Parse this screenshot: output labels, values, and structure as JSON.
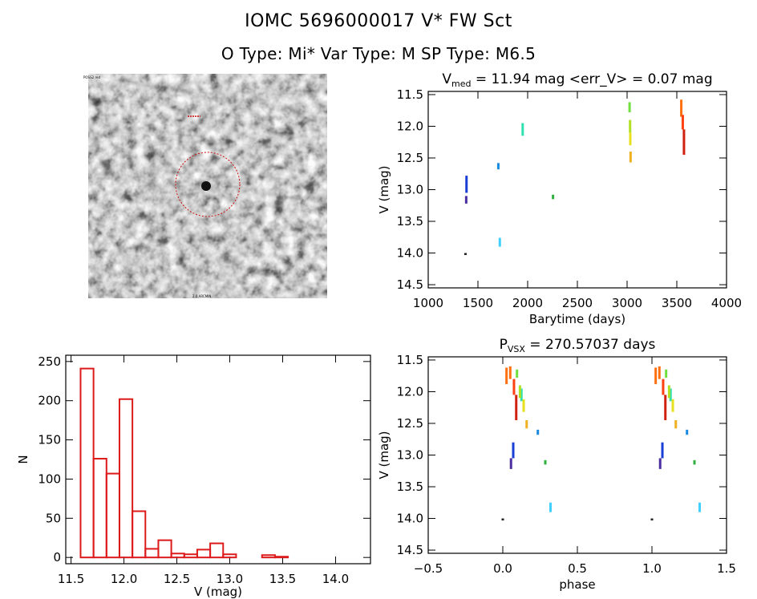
{
  "header": {
    "line1": "IOMC 5696000017    V* FW Sct",
    "line2": "O Type: Mi*  Var Type: M   SP Type: M6.5"
  },
  "finder": {
    "description_icon": "sky-finder-image",
    "circle_color": "#d01010"
  },
  "chart_data": [
    {
      "type": "scatter",
      "id": "light-curve",
      "title_prefix": "V",
      "title_sub": "med",
      "title_rest": " = 11.94 mag <err_V> = 0.07 mag",
      "xlabel": "Barytime (days)",
      "ylabel": "V (mag)",
      "xlim": [
        1000,
        4000
      ],
      "ylim": [
        14.55,
        11.45
      ],
      "xticks": [
        1000,
        1500,
        2000,
        2500,
        3000,
        3500,
        4000
      ],
      "yticks": [
        11.5,
        12.0,
        12.5,
        13.0,
        13.5,
        14.0,
        14.5
      ],
      "ytick_labels": [
        "11.5",
        "12.0",
        "12.5",
        "13.0",
        "13.5",
        "14.0",
        "14.5"
      ],
      "groups": [
        {
          "x": 1375,
          "y": [
            14.0,
            14.03
          ],
          "color": "#222222"
        },
        {
          "x": 1382,
          "y": [
            13.1,
            13.22
          ],
          "color": "#4b2fa0"
        },
        {
          "x": 1385,
          "y": [
            12.78,
            13.05
          ],
          "color": "#1a3fd6"
        },
        {
          "x": 1705,
          "y": [
            12.58,
            12.68
          ],
          "color": "#1a8ae0"
        },
        {
          "x": 1720,
          "y": [
            13.76,
            13.9
          ],
          "color": "#40d0ff"
        },
        {
          "x": 1950,
          "y": [
            11.95,
            12.15
          ],
          "color": "#30e0b0"
        },
        {
          "x": 2255,
          "y": [
            13.08,
            13.15
          ],
          "color": "#30b040"
        },
        {
          "x": 3025,
          "y": [
            11.62,
            11.78
          ],
          "color": "#70e040"
        },
        {
          "x": 3030,
          "y": [
            11.9,
            12.1
          ],
          "color": "#b0e020"
        },
        {
          "x": 3032,
          "y": [
            12.1,
            12.3
          ],
          "color": "#e6e020"
        },
        {
          "x": 3035,
          "y": [
            12.4,
            12.57
          ],
          "color": "#f0b020"
        },
        {
          "x": 3545,
          "y": [
            11.58,
            11.85
          ],
          "color": "#ff7010"
        },
        {
          "x": 3560,
          "y": [
            11.82,
            12.05
          ],
          "color": "#ff4010"
        },
        {
          "x": 3572,
          "y": [
            12.05,
            12.45
          ],
          "color": "#d02010"
        }
      ]
    },
    {
      "type": "bar",
      "id": "histogram",
      "xlabel": "V (mag)",
      "ylabel": "N",
      "xlim": [
        11.45,
        14.33
      ],
      "ylim": [
        -8,
        258
      ],
      "xticks": [
        11.5,
        12.0,
        12.5,
        13.0,
        13.5,
        14.0
      ],
      "xtick_labels": [
        "11.5",
        "12.0",
        "12.5",
        "13.0",
        "13.5",
        "14.0"
      ],
      "yticks": [
        0,
        50,
        100,
        150,
        200,
        250
      ],
      "bin_start": 11.59,
      "bin_width": 0.1225,
      "values": [
        241,
        126,
        107,
        202,
        59,
        11,
        22,
        5,
        4,
        10,
        18,
        4,
        0,
        0,
        3,
        1
      ],
      "color": "#dd1a1a"
    },
    {
      "type": "scatter",
      "id": "phased-curve",
      "title_prefix": "P",
      "title_sub": "VSX",
      "title_rest": " = 270.57037 days",
      "xlabel": "phase",
      "ylabel": "V (mag)",
      "xlim": [
        -0.5,
        1.5
      ],
      "ylim": [
        14.55,
        11.45
      ],
      "xticks": [
        -0.5,
        0.0,
        0.5,
        1.0,
        1.5
      ],
      "xtick_labels": [
        "−0.5",
        "0.0",
        "0.5",
        "1.0",
        "1.5"
      ],
      "yticks": [
        11.5,
        12.0,
        12.5,
        13.0,
        13.5,
        14.0,
        14.5
      ],
      "ytick_labels": [
        "11.5",
        "12.0",
        "12.5",
        "13.0",
        "13.5",
        "14.0",
        "14.5"
      ],
      "groups": [
        {
          "x": 0.0,
          "y": [
            14.0,
            14.03
          ],
          "color": "#222222"
        },
        {
          "x": 0.055,
          "y": [
            13.05,
            13.22
          ],
          "color": "#4b2fa0"
        },
        {
          "x": 0.07,
          "y": [
            12.8,
            13.05
          ],
          "color": "#1a3fd6"
        },
        {
          "x": 0.235,
          "y": [
            12.6,
            12.68
          ],
          "color": "#1a8ae0"
        },
        {
          "x": 0.32,
          "y": [
            13.75,
            13.9
          ],
          "color": "#40d0ff"
        },
        {
          "x": 0.125,
          "y": [
            11.95,
            12.15
          ],
          "color": "#30e0b0"
        },
        {
          "x": 0.285,
          "y": [
            13.08,
            13.15
          ],
          "color": "#30b040"
        },
        {
          "x": 0.095,
          "y": [
            11.65,
            11.78
          ],
          "color": "#70e040"
        },
        {
          "x": 0.115,
          "y": [
            11.9,
            12.1
          ],
          "color": "#b0e020"
        },
        {
          "x": 0.14,
          "y": [
            12.12,
            12.32
          ],
          "color": "#e6e020"
        },
        {
          "x": 0.16,
          "y": [
            12.45,
            12.58
          ],
          "color": "#f0b020"
        },
        {
          "x": 0.025,
          "y": [
            11.62,
            11.88
          ],
          "color": "#ff7010"
        },
        {
          "x": 0.05,
          "y": [
            11.6,
            11.8
          ],
          "color": "#ff7010"
        },
        {
          "x": 0.075,
          "y": [
            11.8,
            12.05
          ],
          "color": "#ff4010"
        },
        {
          "x": 0.09,
          "y": [
            12.05,
            12.45
          ],
          "color": "#d02010"
        }
      ]
    }
  ]
}
